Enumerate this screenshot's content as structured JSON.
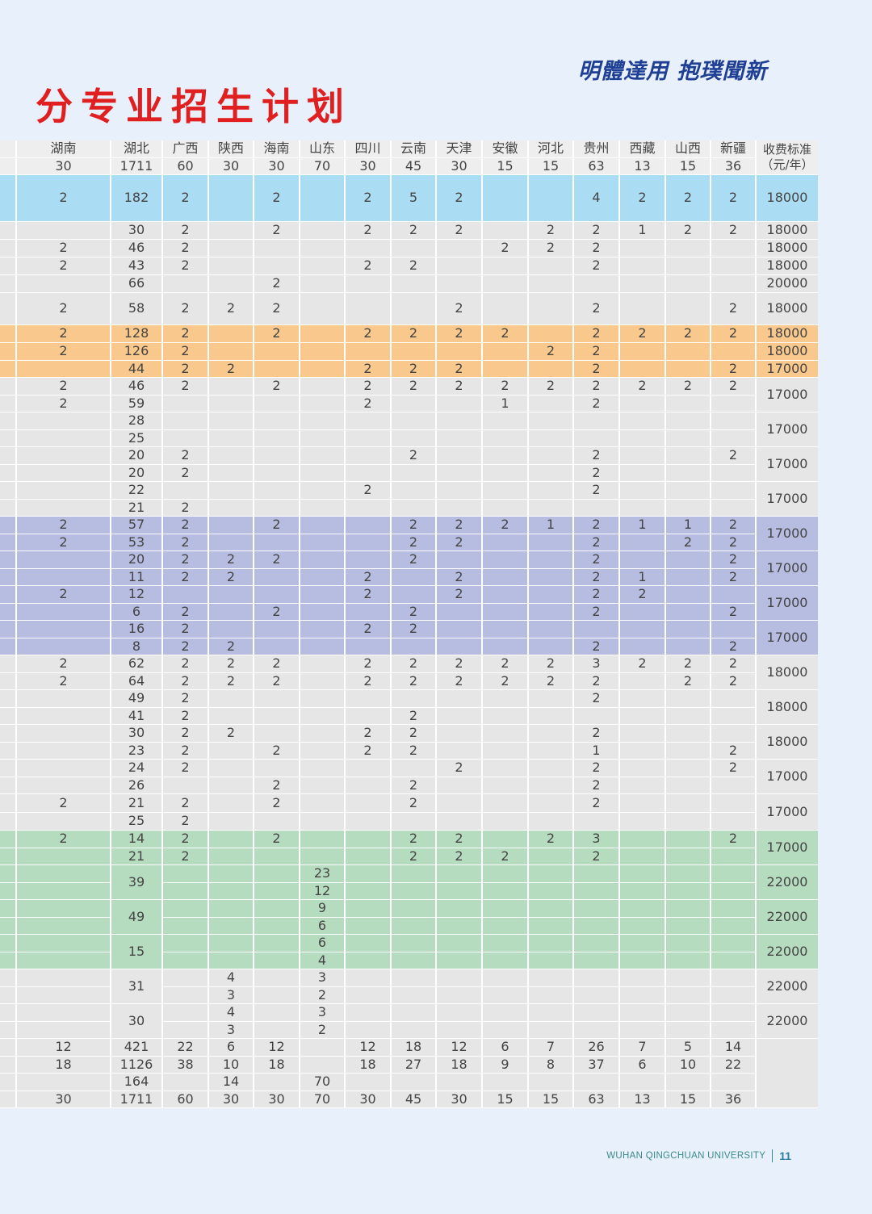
{
  "title": "分专业招生计划",
  "motto": "明體達用 抱璞聞新",
  "footer": {
    "university": "WUHAN QINGCHUAN UNIVERSITY",
    "page": "11"
  },
  "colors": {
    "title": "#e02020",
    "motto": "#1f3f95",
    "blue": "#aadcf3",
    "gray": "#e6e6e6",
    "orange": "#f8c88c",
    "purple": "#b7bde1",
    "green": "#b6dcc0"
  },
  "table": {
    "header_names": [
      "湖南",
      "湖北",
      "广西",
      "陕西",
      "海南",
      "山东",
      "四川",
      "云南",
      "天津",
      "安徽",
      "河北",
      "贵州",
      "西藏",
      "山西",
      "新疆"
    ],
    "header_totals": [
      "30",
      "1711",
      "60",
      "30",
      "30",
      "70",
      "30",
      "45",
      "30",
      "15",
      "15",
      "63",
      "13",
      "15",
      "36"
    ],
    "fee_header": "收费标准（元/年）",
    "fees": [
      {
        "value": "18000",
        "span": 1,
        "bg": "blue"
      },
      {
        "value": "18000",
        "span": 1,
        "bg": "gray"
      },
      {
        "value": "18000",
        "span": 1,
        "bg": "gray"
      },
      {
        "value": "18000",
        "span": 1,
        "bg": "gray"
      },
      {
        "value": "20000",
        "span": 1,
        "bg": "gray"
      },
      {
        "value": "18000",
        "span": 1,
        "bg": "gray"
      },
      {
        "value": "18000",
        "span": 1,
        "bg": "orange"
      },
      {
        "value": "18000",
        "span": 1,
        "bg": "orange"
      },
      {
        "value": "17000",
        "span": 1,
        "bg": "orange"
      },
      {
        "value": "17000",
        "span": 2,
        "bg": "gray"
      },
      {
        "value": "17000",
        "span": 2,
        "bg": "gray"
      },
      {
        "value": "17000",
        "span": 2,
        "bg": "gray"
      },
      {
        "value": "17000",
        "span": 2,
        "bg": "gray"
      },
      {
        "value": "17000",
        "span": 2,
        "bg": "purple"
      },
      {
        "value": "17000",
        "span": 2,
        "bg": "purple"
      },
      {
        "value": "17000",
        "span": 2,
        "bg": "purple"
      },
      {
        "value": "17000",
        "span": 2,
        "bg": "purple"
      },
      {
        "value": "18000",
        "span": 2,
        "bg": "gray"
      },
      {
        "value": "18000",
        "span": 2,
        "bg": "gray"
      },
      {
        "value": "18000",
        "span": 2,
        "bg": "gray"
      },
      {
        "value": "17000",
        "span": 2,
        "bg": "gray"
      },
      {
        "value": "17000",
        "span": 2,
        "bg": "gray"
      },
      {
        "value": "17000",
        "span": 2,
        "bg": "green"
      },
      {
        "value": "22000",
        "span": 2,
        "bg": "green"
      },
      {
        "value": "22000",
        "span": 2,
        "bg": "green"
      },
      {
        "value": "22000",
        "span": 2,
        "bg": "green"
      },
      {
        "value": "22000",
        "span": 2,
        "bg": "gray"
      },
      {
        "value": "22000",
        "span": 2,
        "bg": "gray"
      },
      {
        "value": "",
        "span": 4,
        "bg": "gray"
      }
    ],
    "rows": [
      {
        "bg": "blue",
        "h": 58,
        "cells": [
          "2",
          "182",
          "2",
          "",
          "2",
          "",
          "2",
          "5",
          "2",
          "",
          "",
          "4",
          "2",
          "2",
          "2"
        ]
      },
      {
        "bg": "gray",
        "h": 22,
        "cells": [
          "",
          "30",
          "2",
          "",
          "2",
          "",
          "2",
          "2",
          "2",
          "",
          "2",
          "2",
          "1",
          "2",
          "2"
        ]
      },
      {
        "bg": "gray",
        "h": 22,
        "cells": [
          "2",
          "46",
          "2",
          "",
          "",
          "",
          "",
          "",
          "",
          "2",
          "2",
          "2",
          "",
          "",
          ""
        ]
      },
      {
        "bg": "gray",
        "h": 22,
        "cells": [
          "2",
          "43",
          "2",
          "",
          "",
          "",
          "2",
          "2",
          "",
          "",
          "",
          "2",
          "",
          "",
          ""
        ]
      },
      {
        "bg": "gray",
        "h": 22,
        "cells": [
          "",
          "66",
          "",
          "",
          "2",
          "",
          "",
          "",
          "",
          "",
          "",
          "",
          "",
          "",
          ""
        ]
      },
      {
        "bg": "gray",
        "h": 40,
        "cells": [
          "2",
          "58",
          "2",
          "2",
          "2",
          "",
          "",
          "",
          "2",
          "",
          "",
          "2",
          "",
          "",
          "2"
        ]
      },
      {
        "bg": "orange",
        "h": 22,
        "cells": [
          "2",
          "128",
          "2",
          "",
          "2",
          "",
          "2",
          "2",
          "2",
          "2",
          "",
          "2",
          "2",
          "2",
          "2"
        ]
      },
      {
        "bg": "orange",
        "h": 22,
        "cells": [
          "2",
          "126",
          "2",
          "",
          "",
          "",
          "",
          "",
          "",
          "",
          "2",
          "2",
          "",
          "",
          ""
        ]
      },
      {
        "bg": "orange",
        "h": 21,
        "cells": [
          "",
          "44",
          "2",
          "2",
          "",
          "",
          "2",
          "2",
          "2",
          "",
          "",
          "2",
          "",
          "",
          "2"
        ]
      },
      {
        "bg": "gray",
        "h": 22,
        "cells": [
          "2",
          "46",
          "2",
          "",
          "2",
          "",
          "2",
          "2",
          "2",
          "2",
          "2",
          "2",
          "2",
          "2",
          "2"
        ]
      },
      {
        "bg": "gray",
        "h": 21,
        "cells": [
          "2",
          "59",
          "",
          "",
          "",
          "",
          "2",
          "",
          "",
          "1",
          "",
          "2",
          "",
          "",
          ""
        ]
      },
      {
        "bg": "gray",
        "h": 22,
        "cells": [
          "",
          "28",
          "",
          "",
          "",
          "",
          "",
          "",
          "",
          "",
          "",
          "",
          "",
          "",
          ""
        ]
      },
      {
        "bg": "gray",
        "h": 21,
        "cells": [
          "",
          "25",
          "",
          "",
          "",
          "",
          "",
          "",
          "",
          "",
          "",
          "",
          "",
          "",
          ""
        ]
      },
      {
        "bg": "gray",
        "h": 22,
        "cells": [
          "",
          "20",
          "2",
          "",
          "",
          "",
          "",
          "2",
          "",
          "",
          "",
          "2",
          "",
          "",
          "2"
        ]
      },
      {
        "bg": "gray",
        "h": 21,
        "cells": [
          "",
          "20",
          "2",
          "",
          "",
          "",
          "",
          "",
          "",
          "",
          "",
          "2",
          "",
          "",
          ""
        ]
      },
      {
        "bg": "gray",
        "h": 22,
        "cells": [
          "",
          "22",
          "",
          "",
          "",
          "",
          "2",
          "",
          "",
          "",
          "",
          "2",
          "",
          "",
          ""
        ]
      },
      {
        "bg": "gray",
        "h": 21,
        "cells": [
          "",
          "21",
          "2",
          "",
          "",
          "",
          "",
          "",
          "",
          "",
          "",
          "",
          "",
          "",
          ""
        ]
      },
      {
        "bg": "purple",
        "h": 22,
        "cells": [
          "2",
          "57",
          "2",
          "",
          "2",
          "",
          "",
          "2",
          "2",
          "2",
          "1",
          "2",
          "1",
          "1",
          "2"
        ]
      },
      {
        "bg": "purple",
        "h": 21,
        "cells": [
          "2",
          "53",
          "2",
          "",
          "",
          "",
          "",
          "2",
          "2",
          "",
          "",
          "2",
          "",
          "2",
          "2"
        ]
      },
      {
        "bg": "purple",
        "h": 22,
        "cells": [
          "",
          "20",
          "2",
          "2",
          "2",
          "",
          "",
          "2",
          "",
          "",
          "",
          "2",
          "",
          "",
          "2"
        ]
      },
      {
        "bg": "purple",
        "h": 21,
        "cells": [
          "",
          "11",
          "2",
          "2",
          "",
          "",
          "2",
          "",
          "2",
          "",
          "",
          "2",
          "1",
          "",
          "2"
        ]
      },
      {
        "bg": "purple",
        "h": 22,
        "cells": [
          "2",
          "12",
          "",
          "",
          "",
          "",
          "2",
          "",
          "2",
          "",
          "",
          "2",
          "2",
          "",
          ""
        ]
      },
      {
        "bg": "purple",
        "h": 21,
        "cells": [
          "",
          "6",
          "2",
          "",
          "2",
          "",
          "",
          "2",
          "",
          "",
          "",
          "2",
          "",
          "",
          "2"
        ]
      },
      {
        "bg": "purple",
        "h": 22,
        "cells": [
          "",
          "16",
          "2",
          "",
          "",
          "",
          "2",
          "2",
          "",
          "",
          "",
          "",
          "",
          "",
          ""
        ]
      },
      {
        "bg": "purple",
        "h": 21,
        "cells": [
          "",
          "8",
          "2",
          "2",
          "",
          "",
          "",
          "",
          "",
          "",
          "",
          "2",
          "",
          "",
          "2"
        ]
      },
      {
        "bg": "gray",
        "h": 22,
        "cells": [
          "2",
          "62",
          "2",
          "2",
          "2",
          "",
          "2",
          "2",
          "2",
          "2",
          "2",
          "3",
          "2",
          "2",
          "2"
        ]
      },
      {
        "bg": "gray",
        "h": 21,
        "cells": [
          "2",
          "64",
          "2",
          "2",
          "2",
          "",
          "2",
          "2",
          "2",
          "2",
          "2",
          "2",
          "",
          "2",
          "2"
        ]
      },
      {
        "bg": "gray",
        "h": 22,
        "cells": [
          "",
          "49",
          "2",
          "",
          "",
          "",
          "",
          "",
          "",
          "",
          "",
          "2",
          "",
          "",
          ""
        ]
      },
      {
        "bg": "gray",
        "h": 21,
        "cells": [
          "",
          "41",
          "2",
          "",
          "",
          "",
          "",
          "2",
          "",
          "",
          "",
          "",
          "",
          "",
          ""
        ]
      },
      {
        "bg": "gray",
        "h": 22,
        "cells": [
          "",
          "30",
          "2",
          "2",
          "",
          "",
          "2",
          "2",
          "",
          "",
          "",
          "2",
          "",
          "",
          ""
        ]
      },
      {
        "bg": "gray",
        "h": 21,
        "cells": [
          "",
          "23",
          "2",
          "",
          "2",
          "",
          "2",
          "2",
          "",
          "",
          "",
          "1",
          "",
          "",
          "2"
        ]
      },
      {
        "bg": "gray",
        "h": 22,
        "cells": [
          "",
          "24",
          "2",
          "",
          "",
          "",
          "",
          "",
          "2",
          "",
          "",
          "2",
          "",
          "",
          "2"
        ]
      },
      {
        "bg": "gray",
        "h": 21,
        "cells": [
          "",
          "26",
          "",
          "",
          "2",
          "",
          "",
          "2",
          "",
          "",
          "",
          "2",
          "",
          "",
          ""
        ]
      },
      {
        "bg": "gray",
        "h": 23,
        "cells": [
          "2",
          "21",
          "2",
          "",
          "2",
          "",
          "",
          "2",
          "",
          "",
          "",
          "2",
          "",
          "",
          ""
        ]
      },
      {
        "bg": "gray",
        "h": 22,
        "cells": [
          "",
          "25",
          "2",
          "",
          "",
          "",
          "",
          "",
          "",
          "",
          "",
          "",
          "",
          "",
          ""
        ]
      },
      {
        "bg": "green",
        "h": 22,
        "cells": [
          "2",
          "14",
          "2",
          "",
          "2",
          "",
          "",
          "2",
          "2",
          "",
          "2",
          "3",
          "",
          "",
          "2"
        ]
      },
      {
        "bg": "green",
        "h": 21,
        "cells": [
          "",
          "21",
          "2",
          "",
          "",
          "",
          "",
          "2",
          "2",
          "2",
          "",
          "2",
          "",
          "",
          ""
        ]
      },
      {
        "bg": "green",
        "h": 22,
        "merge": 43,
        "cells": [
          "",
          "39",
          "",
          "",
          "",
          "23",
          "",
          "",
          "",
          "",
          "",
          "",
          "",
          "",
          ""
        ]
      },
      {
        "bg": "green",
        "h": 21,
        "cont": true,
        "cells": [
          "",
          "",
          "",
          "",
          "",
          "12",
          "",
          "",
          "",
          "",
          "",
          "",
          "",
          "",
          ""
        ]
      },
      {
        "bg": "green",
        "h": 22,
        "merge": 43,
        "cells": [
          "",
          "49",
          "",
          "",
          "",
          "9",
          "",
          "",
          "",
          "",
          "",
          "",
          "",
          "",
          ""
        ]
      },
      {
        "bg": "green",
        "h": 21,
        "cont": true,
        "cells": [
          "",
          "",
          "",
          "",
          "",
          "6",
          "",
          "",
          "",
          "",
          "",
          "",
          "",
          "",
          ""
        ]
      },
      {
        "bg": "green",
        "h": 22,
        "merge": 43,
        "cells": [
          "",
          "15",
          "",
          "",
          "",
          "6",
          "",
          "",
          "",
          "",
          "",
          "",
          "",
          "",
          ""
        ]
      },
      {
        "bg": "green",
        "h": 21,
        "cont": true,
        "cells": [
          "",
          "",
          "",
          "",
          "",
          "4",
          "",
          "",
          "",
          "",
          "",
          "",
          "",
          "",
          ""
        ]
      },
      {
        "bg": "gray",
        "h": 22,
        "merge": 43,
        "cells": [
          "",
          "31",
          "",
          "4",
          "",
          "3",
          "",
          "",
          "",
          "",
          "",
          "",
          "",
          "",
          ""
        ]
      },
      {
        "bg": "gray",
        "h": 21,
        "cont": true,
        "cells": [
          "",
          "",
          "",
          "3",
          "",
          "2",
          "",
          "",
          "",
          "",
          "",
          "",
          "",
          "",
          ""
        ]
      },
      {
        "bg": "gray",
        "h": 22,
        "merge": 43,
        "cells": [
          "",
          "30",
          "",
          "4",
          "",
          "3",
          "",
          "",
          "",
          "",
          "",
          "",
          "",
          "",
          ""
        ]
      },
      {
        "bg": "gray",
        "h": 21,
        "cont": true,
        "cells": [
          "",
          "",
          "",
          "3",
          "",
          "2",
          "",
          "",
          "",
          "",
          "",
          "",
          "",
          "",
          ""
        ]
      },
      {
        "bg": "gray",
        "h": 22,
        "cells": [
          "12",
          "421",
          "22",
          "6",
          "12",
          "",
          "12",
          "18",
          "12",
          "6",
          "7",
          "26",
          "7",
          "5",
          "14"
        ]
      },
      {
        "bg": "gray",
        "h": 21,
        "cells": [
          "18",
          "1126",
          "38",
          "10",
          "18",
          "",
          "18",
          "27",
          "18",
          "9",
          "8",
          "37",
          "6",
          "10",
          "22"
        ]
      },
      {
        "bg": "gray",
        "h": 22,
        "cells": [
          "",
          "164",
          "",
          "14",
          "",
          "70",
          "",
          "",
          "",
          "",
          "",
          "",
          "",
          "",
          ""
        ]
      },
      {
        "bg": "gray",
        "h": 21,
        "cells": [
          "30",
          "1711",
          "60",
          "30",
          "30",
          "70",
          "30",
          "45",
          "30",
          "15",
          "15",
          "63",
          "13",
          "15",
          "36"
        ]
      }
    ]
  }
}
